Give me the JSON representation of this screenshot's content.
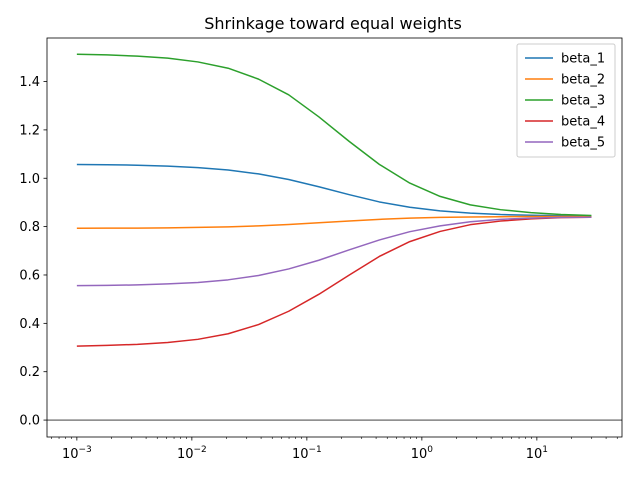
{
  "chart_data": {
    "type": "line",
    "title": "Shrinkage toward equal weights",
    "xlabel": "",
    "ylabel": "",
    "xscale": "log",
    "xlim": [
      0.00055,
      55
    ],
    "ylim": [
      -0.07,
      1.58
    ],
    "x": [
      0.001,
      0.00183,
      0.00336,
      0.00616,
      0.0113,
      0.0207,
      0.038,
      0.0695,
      0.127,
      0.234,
      0.428,
      0.785,
      1.44,
      2.64,
      4.83,
      8.86,
      16.2,
      29.8
    ],
    "series": [
      {
        "name": "beta_1",
        "color": "#1f77b4",
        "values": [
          1.057,
          1.056,
          1.054,
          1.05,
          1.044,
          1.034,
          1.018,
          0.995,
          0.965,
          0.932,
          0.902,
          0.88,
          0.865,
          0.856,
          0.85,
          0.847,
          0.845,
          0.844
        ]
      },
      {
        "name": "beta_2",
        "color": "#ff7f0e",
        "values": [
          0.793,
          0.794,
          0.794,
          0.795,
          0.797,
          0.799,
          0.803,
          0.809,
          0.816,
          0.823,
          0.83,
          0.835,
          0.838,
          0.84,
          0.841,
          0.842,
          0.842,
          0.842
        ]
      },
      {
        "name": "beta_3",
        "color": "#2ca02c",
        "values": [
          1.513,
          1.51,
          1.505,
          1.497,
          1.481,
          1.455,
          1.41,
          1.345,
          1.254,
          1.152,
          1.057,
          0.98,
          0.925,
          0.89,
          0.87,
          0.858,
          0.85,
          0.846
        ]
      },
      {
        "name": "beta_4",
        "color": "#d62728",
        "values": [
          0.306,
          0.309,
          0.313,
          0.321,
          0.334,
          0.357,
          0.395,
          0.45,
          0.52,
          0.6,
          0.677,
          0.738,
          0.78,
          0.808,
          0.823,
          0.832,
          0.837,
          0.839
        ]
      },
      {
        "name": "beta_5",
        "color": "#9467bd",
        "values": [
          0.556,
          0.557,
          0.559,
          0.563,
          0.569,
          0.58,
          0.598,
          0.625,
          0.661,
          0.704,
          0.745,
          0.779,
          0.803,
          0.82,
          0.83,
          0.835,
          0.838,
          0.839
        ]
      }
    ],
    "reference_line": {
      "y": 0.0,
      "color": "#808080"
    },
    "xticks": [
      {
        "value": 0.001,
        "base": "10",
        "exp": "−3"
      },
      {
        "value": 0.01,
        "base": "10",
        "exp": "−2"
      },
      {
        "value": 0.1,
        "base": "10",
        "exp": "−1"
      },
      {
        "value": 1,
        "base": "10",
        "exp": "0"
      },
      {
        "value": 10,
        "base": "10",
        "exp": "1"
      }
    ],
    "yticks": [
      {
        "value": 0.0,
        "label": "0.0"
      },
      {
        "value": 0.2,
        "label": "0.2"
      },
      {
        "value": 0.4,
        "label": "0.4"
      },
      {
        "value": 0.6,
        "label": "0.6"
      },
      {
        "value": 0.8,
        "label": "0.8"
      },
      {
        "value": 1.0,
        "label": "1.0"
      },
      {
        "value": 1.2,
        "label": "1.2"
      },
      {
        "value": 1.4,
        "label": "1.4"
      }
    ],
    "grid": false,
    "legend_position": "top-right"
  }
}
